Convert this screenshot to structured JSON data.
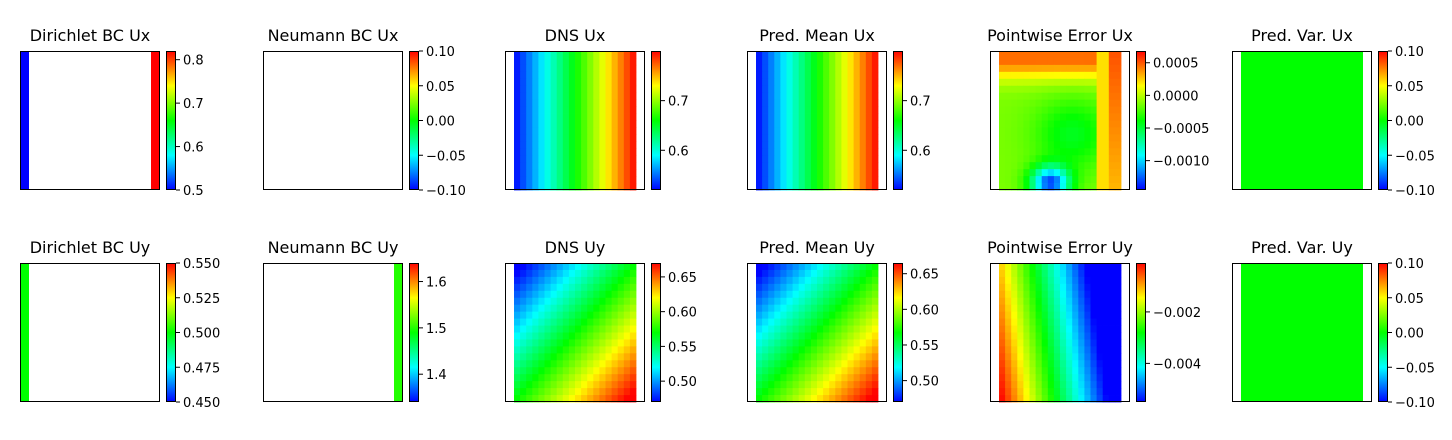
{
  "chart_data": {
    "type": "heatmap",
    "colormap": [
      "#0000ff",
      "#00ffff",
      "#00ff00",
      "#ffff00",
      "#ff0000"
    ],
    "panels": [
      {
        "id": "dirichlet-ux",
        "title": "Dirichlet BC Ux",
        "kind": "bc-left-right",
        "vmin": 0.5,
        "vmax": 0.82,
        "left_value": 0.5,
        "right_value": 0.82,
        "ticks": [
          "0.5",
          "0.6",
          "0.7",
          "0.8"
        ],
        "tick_values": [
          0.5,
          0.6,
          0.7,
          0.8
        ]
      },
      {
        "id": "neumann-ux",
        "title": "Neumann BC Ux",
        "kind": "empty",
        "vmin": -0.1,
        "vmax": 0.1,
        "ticks": [
          "−0.10",
          "−0.05",
          "0.00",
          "0.05",
          "0.10"
        ],
        "tick_values": [
          -0.1,
          -0.05,
          0.0,
          0.05,
          0.1
        ]
      },
      {
        "id": "dns-ux",
        "title": "DNS Ux",
        "kind": "x-gradient",
        "vmin": 0.52,
        "vmax": 0.8,
        "ticks": [
          "0.6",
          "0.7"
        ],
        "tick_values": [
          0.6,
          0.7
        ]
      },
      {
        "id": "pred-mean-ux",
        "title": "Pred. Mean Ux",
        "kind": "x-gradient",
        "vmin": 0.52,
        "vmax": 0.8,
        "ticks": [
          "0.6",
          "0.7"
        ],
        "tick_values": [
          0.6,
          0.7
        ]
      },
      {
        "id": "error-ux",
        "title": "Pointwise Error Ux",
        "kind": "error-x",
        "vmin": -0.00145,
        "vmax": 0.00068,
        "ticks": [
          "−0.0010",
          "−0.0005",
          "0.0000",
          "0.0005"
        ],
        "tick_values": [
          -0.001,
          -0.0005,
          0.0,
          0.0005
        ]
      },
      {
        "id": "pred-var-ux",
        "title": "Pred. Var. Ux",
        "kind": "uniform",
        "vmin": -0.1,
        "vmax": 0.1,
        "value": 0.0,
        "ticks": [
          "−0.10",
          "−0.05",
          "0.00",
          "0.05",
          "0.10"
        ],
        "tick_values": [
          -0.1,
          -0.05,
          0.0,
          0.05,
          0.1
        ]
      },
      {
        "id": "dirichlet-uy",
        "title": "Dirichlet BC Uy",
        "kind": "bc-left",
        "vmin": 0.45,
        "vmax": 0.55,
        "left_value": 0.5,
        "ticks": [
          "0.450",
          "0.475",
          "0.500",
          "0.525",
          "0.550"
        ],
        "tick_values": [
          0.45,
          0.475,
          0.5,
          0.525,
          0.55
        ]
      },
      {
        "id": "neumann-uy",
        "title": "Neumann BC Uy",
        "kind": "bc-right",
        "vmin": 1.34,
        "vmax": 1.64,
        "right_value": 1.5,
        "ticks": [
          "1.4",
          "1.5",
          "1.6"
        ],
        "tick_values": [
          1.4,
          1.5,
          1.6
        ]
      },
      {
        "id": "dns-uy",
        "title": "DNS Uy",
        "kind": "diagonal",
        "vmin": 0.47,
        "vmax": 0.67,
        "ticks": [
          "0.50",
          "0.55",
          "0.60",
          "0.65"
        ],
        "tick_values": [
          0.5,
          0.55,
          0.6,
          0.65
        ]
      },
      {
        "id": "pred-mean-uy",
        "title": "Pred. Mean Uy",
        "kind": "diagonal",
        "vmin": 0.47,
        "vmax": 0.665,
        "ticks": [
          "0.50",
          "0.55",
          "0.60",
          "0.65"
        ],
        "tick_values": [
          0.5,
          0.55,
          0.6,
          0.65
        ]
      },
      {
        "id": "error-uy",
        "title": "Pointwise Error Uy",
        "kind": "error-y",
        "vmin": -0.0055,
        "vmax": -0.0001,
        "ticks": [
          "−0.004",
          "−0.002"
        ],
        "tick_values": [
          -0.004,
          -0.002
        ]
      },
      {
        "id": "pred-var-uy",
        "title": "Pred. Var. Uy",
        "kind": "uniform",
        "vmin": -0.1,
        "vmax": 0.1,
        "value": 0.0,
        "ticks": [
          "−0.10",
          "−0.05",
          "0.00",
          "0.05",
          "0.10"
        ],
        "tick_values": [
          -0.1,
          -0.05,
          0.0,
          0.05,
          0.1
        ]
      }
    ]
  }
}
